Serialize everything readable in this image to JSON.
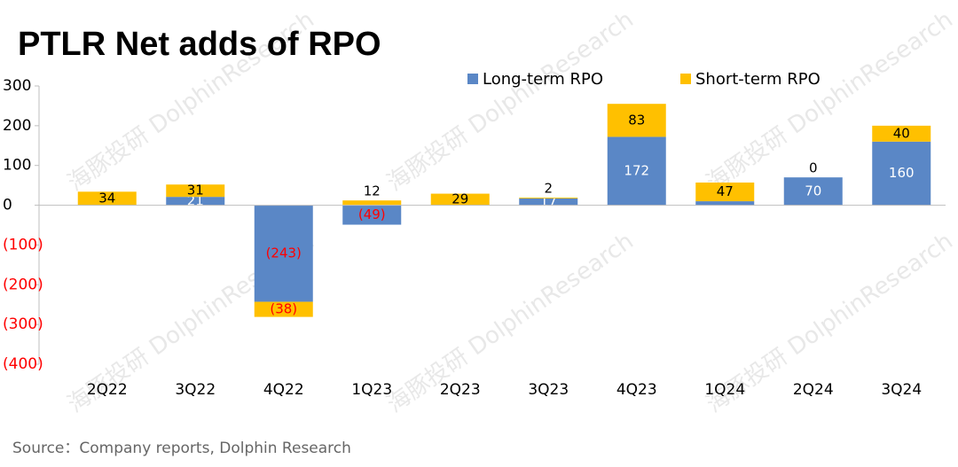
{
  "chart_data": {
    "type": "stacked_bar",
    "title": "PTLR Net adds of RPO",
    "categories": [
      "2Q22",
      "3Q22",
      "4Q22",
      "1Q23",
      "2Q23",
      "3Q23",
      "4Q23",
      "1Q24",
      "2Q24",
      "3Q24"
    ],
    "series": [
      {
        "name": "Long-term RPO",
        "color": "#5a87c6",
        "values": [
          null,
          21,
          -243,
          -49,
          null,
          17,
          172,
          10,
          70,
          160
        ],
        "value_labels": [
          null,
          "21",
          "(243)",
          "(49)",
          null,
          "17",
          "172",
          "10",
          "70",
          "160"
        ]
      },
      {
        "name": "Short-term RPO",
        "color": "#ffc000",
        "values": [
          34,
          31,
          -38,
          12,
          29,
          2,
          83,
          47,
          0,
          40
        ],
        "value_labels": [
          "34",
          "31",
          "(38)",
          "12",
          "29",
          "2",
          "83",
          "47",
          "0",
          "40"
        ]
      }
    ],
    "ylim": [
      -400,
      300
    ],
    "yticks": [
      {
        "value": -400,
        "label": "(400)"
      },
      {
        "value": -300,
        "label": "(300)"
      },
      {
        "value": -200,
        "label": "(200)"
      },
      {
        "value": -100,
        "label": "(100)"
      },
      0,
      100,
      200,
      300
    ],
    "negative_color": "#ff0000",
    "legend": "top-right",
    "source": "Source：Company reports, Dolphin Research",
    "watermark": "海豚投研 DolphinResearch"
  }
}
